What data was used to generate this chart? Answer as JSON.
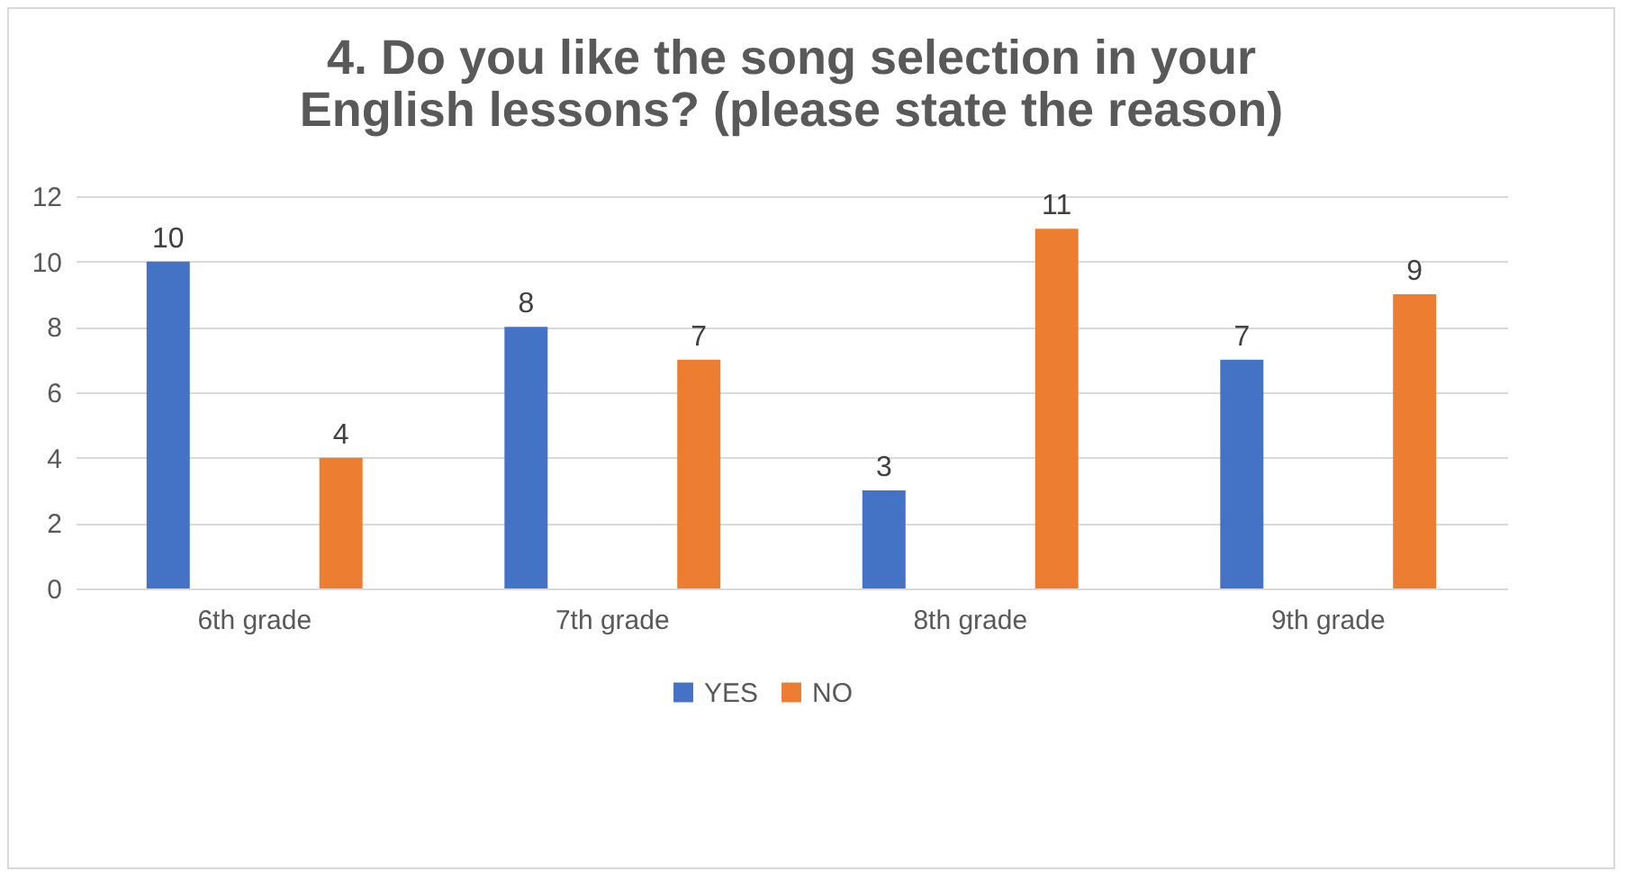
{
  "chart_data": {
    "type": "bar",
    "title": "4. Do you like the song selection in your English lessons? (please state the reason)",
    "categories": [
      "6th grade",
      "7th grade",
      "8th grade",
      "9th grade"
    ],
    "series": [
      {
        "name": "YES",
        "color": "#4472c4",
        "values": [
          10,
          8,
          3,
          7
        ]
      },
      {
        "name": "NO",
        "color": "#ed7d31",
        "values": [
          4,
          7,
          11,
          9
        ]
      }
    ],
    "ylim": [
      0,
      12
    ],
    "yticks": [
      0,
      2,
      4,
      6,
      8,
      10,
      12
    ],
    "grid": "y",
    "legend": "bottom",
    "data_labels": true
  }
}
